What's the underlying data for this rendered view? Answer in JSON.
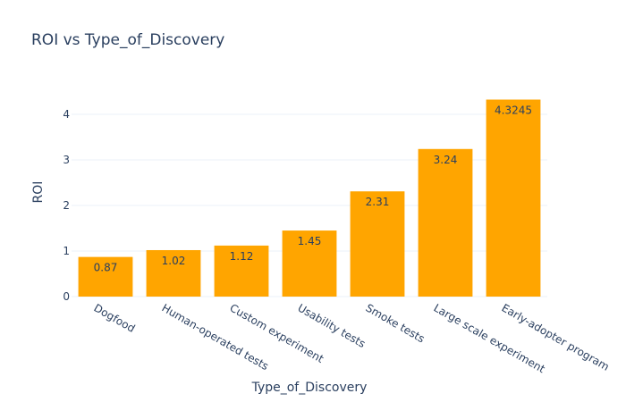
{
  "chart_data": {
    "type": "bar",
    "title": "ROI vs Type_of_Discovery",
    "xlabel": "Type_of_Discovery",
    "ylabel": "ROI",
    "categories": [
      "Dogfood",
      "Human-operated tests",
      "Custom experiment",
      "Usability tests",
      "Smoke tests",
      "Large scale experiment",
      "Early-adopter program"
    ],
    "values": [
      0.87,
      1.02,
      1.12,
      1.45,
      2.31,
      3.24,
      4.3245
    ],
    "value_labels": [
      "0.87",
      "1.02",
      "1.12",
      "1.45",
      "2.31",
      "3.24",
      "4.3245"
    ],
    "ylim": [
      0,
      4.55
    ],
    "yticks": [
      0,
      1,
      2,
      3,
      4
    ],
    "grid": true,
    "legend": "none",
    "bar_color": "#FFA500"
  }
}
